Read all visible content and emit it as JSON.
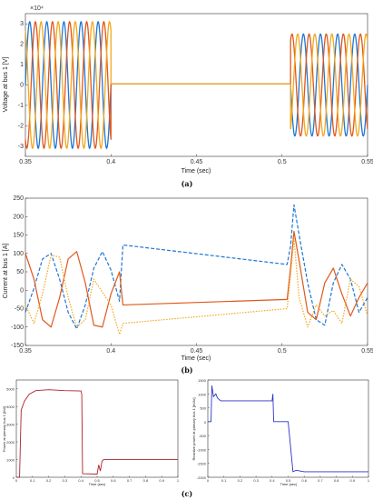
{
  "figure": {
    "panels": [
      {
        "label": "(a)"
      },
      {
        "label": "(b)"
      },
      {
        "label": "(c)"
      }
    ]
  },
  "colors": {
    "phase_a": "#1f77d4",
    "phase_b": "#e1571b",
    "phase_c": "#f2a81d",
    "power": "#b0202a",
    "reactive": "#2b35c9"
  },
  "chart_data": [
    {
      "type": "line",
      "title": "",
      "xlabel": "Time (sec)",
      "ylabel": "Voltage at bus 1 [V]",
      "y_multiplier": "×10⁴",
      "xlim": [
        0.35,
        0.55
      ],
      "ylim": [
        -3.5,
        3.5
      ],
      "x_ticks": [
        "0.35",
        "0.4",
        "0.45",
        "0.5",
        "0.55"
      ],
      "y_ticks": [
        "-3",
        "-2",
        "-1",
        "0",
        "1",
        "2",
        "3"
      ],
      "series": [
        {
          "phase": "a",
          "amplitude": 3.1,
          "segments": [
            {
              "x": [
                0.35,
                0.4
              ],
              "freq_hz": 100,
              "phase_deg": 0
            },
            {
              "x": [
                0.4,
                0.505
              ],
              "value": 0.05
            },
            {
              "x": [
                0.505,
                0.55
              ],
              "freq_hz": 100,
              "amplitude": 2.5,
              "phase_deg": 0
            }
          ]
        },
        {
          "phase": "b",
          "amplitude": 3.1,
          "segments": [
            {
              "x": [
                0.35,
                0.4
              ],
              "freq_hz": 100,
              "phase_deg": -120
            },
            {
              "x": [
                0.4,
                0.505
              ],
              "value": 0.05
            },
            {
              "x": [
                0.505,
                0.55
              ],
              "freq_hz": 100,
              "amplitude": 2.5,
              "phase_deg": -120
            }
          ]
        },
        {
          "phase": "c",
          "amplitude": 3.1,
          "segments": [
            {
              "x": [
                0.35,
                0.4
              ],
              "freq_hz": 100,
              "phase_deg": 120
            },
            {
              "x": [
                0.4,
                0.505
              ],
              "value": 0.05
            },
            {
              "x": [
                0.505,
                0.55
              ],
              "freq_hz": 100,
              "amplitude": 2.5,
              "phase_deg": 120
            }
          ]
        }
      ]
    },
    {
      "type": "line",
      "title": "",
      "xlabel": "Time (sec)",
      "ylabel": "Current at bus 1 [A]",
      "xlim": [
        0.35,
        0.55
      ],
      "ylim": [
        -150,
        250
      ],
      "x_ticks": [
        "0.35",
        "0.4",
        "0.45",
        "0.5",
        "0.55"
      ],
      "y_ticks": [
        "-150",
        "-100",
        "-50",
        "0",
        "50",
        "100",
        "150",
        "200",
        "250"
      ],
      "series": [
        {
          "phase": "a",
          "style": "dashed",
          "points": [
            [
              0.35,
              -60
            ],
            [
              0.355,
              5
            ],
            [
              0.36,
              85
            ],
            [
              0.365,
              100
            ],
            [
              0.37,
              30
            ],
            [
              0.375,
              -60
            ],
            [
              0.38,
              -105
            ],
            [
              0.385,
              -40
            ],
            [
              0.39,
              60
            ],
            [
              0.395,
              105
            ],
            [
              0.4,
              55
            ],
            [
              0.405,
              -30
            ],
            [
              0.407,
              123
            ],
            [
              0.503,
              70
            ],
            [
              0.505,
              120
            ],
            [
              0.507,
              232
            ],
            [
              0.51,
              150
            ],
            [
              0.515,
              20
            ],
            [
              0.52,
              -80
            ],
            [
              0.525,
              -95
            ],
            [
              0.53,
              20
            ],
            [
              0.535,
              70
            ],
            [
              0.54,
              30
            ],
            [
              0.545,
              -60
            ],
            [
              0.55,
              -20
            ]
          ]
        },
        {
          "phase": "b",
          "style": "solid",
          "points": [
            [
              0.35,
              100
            ],
            [
              0.355,
              30
            ],
            [
              0.36,
              -80
            ],
            [
              0.365,
              -100
            ],
            [
              0.37,
              -20
            ],
            [
              0.375,
              85
            ],
            [
              0.38,
              105
            ],
            [
              0.385,
              20
            ],
            [
              0.39,
              -95
            ],
            [
              0.395,
              -100
            ],
            [
              0.4,
              -10
            ],
            [
              0.405,
              50
            ],
            [
              0.407,
              -40
            ],
            [
              0.503,
              -25
            ],
            [
              0.505,
              60
            ],
            [
              0.507,
              160
            ],
            [
              0.51,
              80
            ],
            [
              0.515,
              -60
            ],
            [
              0.52,
              -80
            ],
            [
              0.525,
              20
            ],
            [
              0.53,
              60
            ],
            [
              0.535,
              -10
            ],
            [
              0.54,
              -70
            ],
            [
              0.545,
              -20
            ],
            [
              0.55,
              20
            ]
          ]
        },
        {
          "phase": "c",
          "style": "dotted",
          "points": [
            [
              0.35,
              -40
            ],
            [
              0.355,
              -90
            ],
            [
              0.36,
              -10
            ],
            [
              0.365,
              95
            ],
            [
              0.37,
              90
            ],
            [
              0.375,
              -20
            ],
            [
              0.38,
              -100
            ],
            [
              0.385,
              -80
            ],
            [
              0.39,
              30
            ],
            [
              0.395,
              -5
            ],
            [
              0.4,
              -40
            ],
            [
              0.405,
              -120
            ],
            [
              0.407,
              -90
            ],
            [
              0.503,
              -50
            ],
            [
              0.505,
              40
            ],
            [
              0.507,
              140
            ],
            [
              0.51,
              -20
            ],
            [
              0.515,
              -100
            ],
            [
              0.52,
              -40
            ],
            [
              0.525,
              -70
            ],
            [
              0.53,
              -55
            ],
            [
              0.535,
              -90
            ],
            [
              0.54,
              30
            ],
            [
              0.545,
              10
            ],
            [
              0.55,
              -70
            ]
          ]
        }
      ]
    },
    {
      "type": "line",
      "title": "",
      "xlabel": "Time (sec)",
      "ylabel": "Power at primary bus 1 [kW]",
      "xlim": [
        0,
        1
      ],
      "ylim": [
        0,
        5500
      ],
      "x_ticks": [
        "0",
        "0.1",
        "0.2",
        "0.3",
        "0.4",
        "0.5",
        "0.6",
        "0.7",
        "0.8",
        "0.9",
        "1"
      ],
      "y_ticks": [
        "0",
        "1000",
        "2000",
        "3000",
        "4000",
        "5000"
      ],
      "series": [
        {
          "name": "",
          "points": [
            [
              0,
              0
            ],
            [
              0.02,
              0
            ],
            [
              0.03,
              3800
            ],
            [
              0.05,
              4300
            ],
            [
              0.08,
              4700
            ],
            [
              0.12,
              4900
            ],
            [
              0.2,
              4950
            ],
            [
              0.3,
              4900
            ],
            [
              0.4,
              4880
            ],
            [
              0.405,
              4700
            ],
            [
              0.41,
              200
            ],
            [
              0.5,
              180
            ],
            [
              0.51,
              700
            ],
            [
              0.52,
              350
            ],
            [
              0.53,
              900
            ],
            [
              0.54,
              1000
            ],
            [
              1,
              1000
            ]
          ]
        }
      ]
    },
    {
      "type": "line",
      "title": "",
      "xlabel": "Time (sec)",
      "ylabel": "Reactive power at primary bus 1 [kVAr]",
      "xlim": [
        0,
        1
      ],
      "ylim": [
        -2000,
        1500
      ],
      "x_ticks": [
        "0",
        "0.1",
        "0.2",
        "0.3",
        "0.4",
        "0.5",
        "0.6",
        "0.7",
        "0.8",
        "0.9",
        "1"
      ],
      "y_ticks": [
        "-2000",
        "-1500",
        "-1000",
        "-500",
        "0",
        "500",
        "1000",
        "1500"
      ],
      "series": [
        {
          "name": "",
          "points": [
            [
              0,
              0
            ],
            [
              0.02,
              0
            ],
            [
              0.025,
              1300
            ],
            [
              0.035,
              900
            ],
            [
              0.05,
              1000
            ],
            [
              0.06,
              850
            ],
            [
              0.08,
              750
            ],
            [
              0.15,
              750
            ],
            [
              0.3,
              750
            ],
            [
              0.4,
              750
            ],
            [
              0.405,
              1000
            ],
            [
              0.41,
              0
            ],
            [
              0.48,
              0
            ],
            [
              0.5,
              0
            ],
            [
              0.52,
              -1200
            ],
            [
              0.53,
              -1800
            ],
            [
              0.55,
              -1750
            ],
            [
              0.6,
              -1800
            ],
            [
              1,
              -1800
            ]
          ]
        }
      ]
    }
  ]
}
